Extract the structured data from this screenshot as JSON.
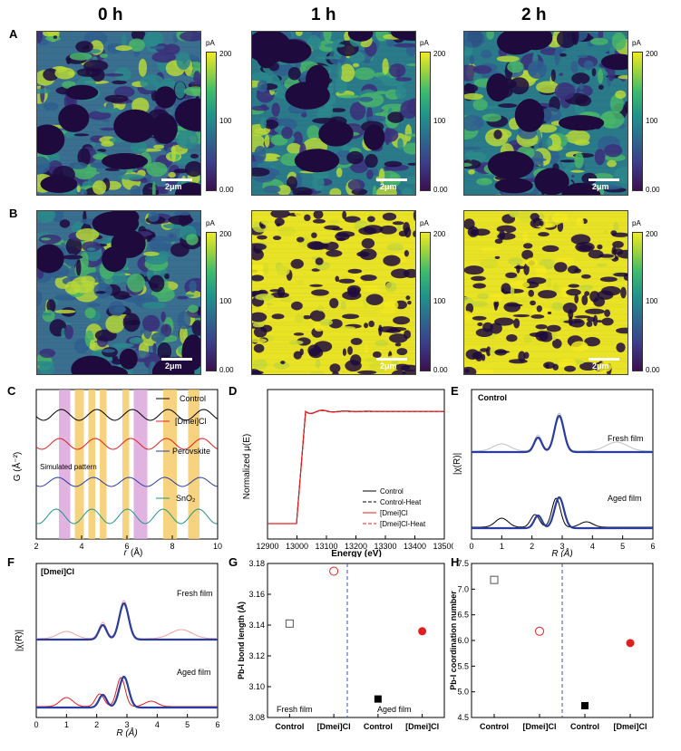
{
  "time_labels": [
    "0 h",
    "1 h",
    "2 h"
  ],
  "panel_letters": {
    "A": "A",
    "B": "B",
    "C": "C",
    "D": "D",
    "E": "E",
    "F": "F",
    "G": "G",
    "H": "H"
  },
  "colorbar": {
    "unit": "pA",
    "max": "200",
    "mid": "100",
    "min": "0.00"
  },
  "scale_bar_text": "2μm",
  "panel_c": {
    "ylabel": "G (Å⁻²)",
    "xlabel_var": "r",
    "xlabel_unit": "(Å)",
    "xticks": [
      "2",
      "4",
      "6",
      "8",
      "10"
    ],
    "legend": [
      "Control",
      "[Dmei]Cl",
      "Perovskite",
      "SnO₂"
    ],
    "annotation": "Simulated pattern"
  },
  "panel_d": {
    "ylabel": "Normalized μ(E)",
    "xlabel": "Energy (eV)",
    "xticks": [
      "12900",
      "13000",
      "13100",
      "13200",
      "13300",
      "13400",
      "13500"
    ],
    "legend": [
      "Control",
      "Control-Heat",
      "[Dmei]Cl",
      "[Dmei]Cl-Heat"
    ]
  },
  "panel_e": {
    "title": "Control",
    "ylabel": "|χ(R)|",
    "xlabel": "R (Å)",
    "xticks": [
      "0",
      "1",
      "2",
      "3",
      "4",
      "5",
      "6"
    ],
    "upper_label": "Fresh film",
    "lower_label": "Aged film"
  },
  "panel_f": {
    "title": "[Dmei]Cl",
    "ylabel": "|χ(R)|",
    "xlabel": "R (Å)",
    "xticks": [
      "0",
      "1",
      "2",
      "3",
      "4",
      "5",
      "6"
    ],
    "upper_label": "Fresh film",
    "lower_label": "Aged film"
  },
  "chart_data": [
    {
      "panel": "G",
      "type": "scatter",
      "ylabel": "Pb-I bond length (Å)",
      "categories": [
        "Control",
        "[Dmei]Cl",
        "Control",
        "[Dmei]Cl"
      ],
      "values": [
        3.141,
        3.175,
        3.092,
        3.136
      ],
      "markers": [
        "open-square",
        "open-circle",
        "filled-square",
        "filled-circle"
      ],
      "ylim": [
        3.08,
        3.18
      ],
      "yticks": [
        "3.08",
        "3.10",
        "3.12",
        "3.14",
        "3.16",
        "3.18"
      ],
      "annotations": [
        "Fresh film",
        "Aged film"
      ]
    },
    {
      "panel": "H",
      "type": "scatter",
      "ylabel": "Pb-I coordination number",
      "categories": [
        "Control",
        "[Dmei]Cl",
        "Control",
        "[Dmei]Cl"
      ],
      "values": [
        7.18,
        6.18,
        4.73,
        5.95
      ],
      "markers": [
        "open-square",
        "open-circle",
        "filled-square",
        "filled-circle"
      ],
      "ylim": [
        4.5,
        7.5
      ],
      "yticks": [
        "4.5",
        "5.0",
        "5.5",
        "6.0",
        "6.5",
        "7.0",
        "7.5"
      ]
    }
  ],
  "colors": {
    "control": "#000000",
    "dmei": "#e02020",
    "fit": "#2a3d9e",
    "pink": "#d8a0d8",
    "orange": "#f5c860",
    "dashed_divider": "#3a4fd0"
  }
}
